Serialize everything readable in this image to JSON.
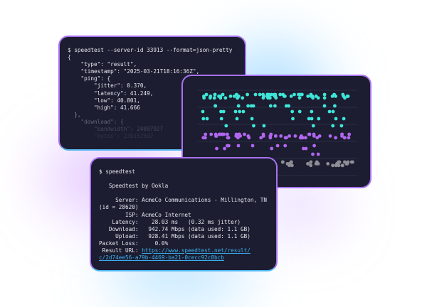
{
  "json_terminal": {
    "command": "$ speedtest --server-id 33913 --format=json-pretty",
    "lines": [
      "{",
      "    \"type\": \"result\",",
      "    \"timestamp\": \"2025-03-21T18:16:36Z\",",
      "    \"ping\": {",
      "        \"jitter\": 0.370,",
      "        \"latency\": 41.249,",
      "        \"low\": 40.801,",
      "        \"high\": 41.666",
      "  },",
      "    \"download\": {",
      "        \"bandwidth\": 24097927",
      "        \"bytes\": 239152592"
    ]
  },
  "dot_plot": {
    "colors": {
      "top": "#3ee6d8",
      "middle": "#b166f0",
      "bottom": "#8e8e96",
      "grid": "#2a2d48"
    }
  },
  "cli_terminal": {
    "command": "$ speedtest",
    "title": "   Speedtest by Ookla",
    "lines": [
      "     Server: AcmeCo Communications - Millington, TN",
      "(id = 28620)",
      "        ISP: AcmeCo Internet",
      "    Latency:    28.03 ms   (0.32 ms jitter)",
      "   Download:   942.74 Mbps (data used: 1.1 GB)",
      "     Upload:   928.41 Mbps (data used: 1.1 GB)",
      "Packet Loss:     0.0%"
    ],
    "result_label": " Result URL: ",
    "result_url_1": "https://www.speedtest.net/result/",
    "result_url_2": "c/2d74ee56-a79b-4469-ba21-0cecc92c8bcb"
  }
}
